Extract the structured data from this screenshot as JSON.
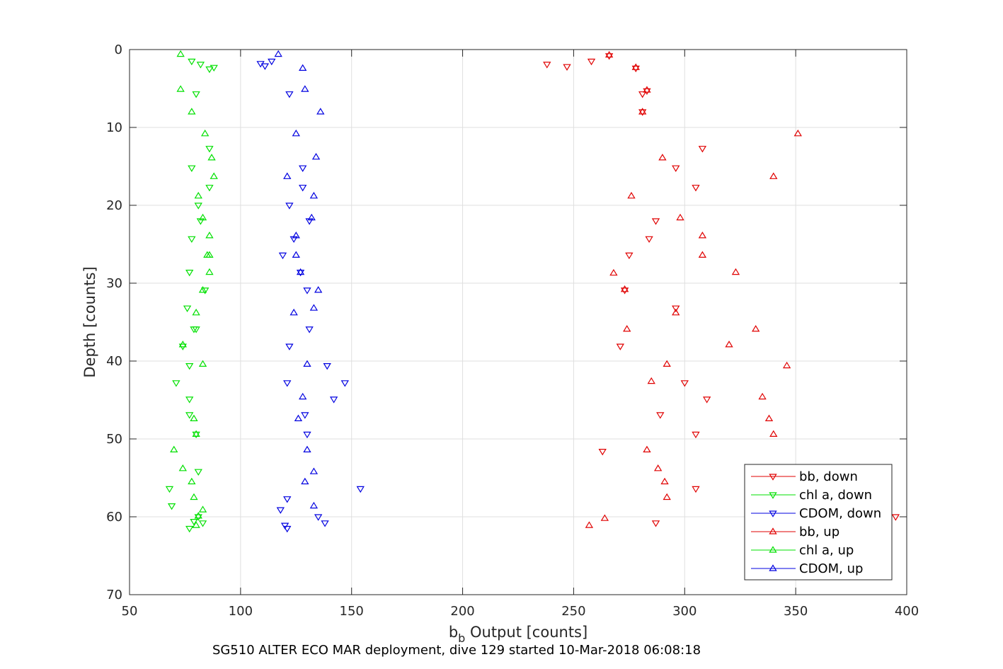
{
  "chart_data": {
    "type": "scatter",
    "xlabel_main": "b",
    "xlabel_sub": "b",
    "xlabel_rest": " Output [counts]",
    "ylabel": "Depth [counts]",
    "caption": "SG510 ALTER ECO MAR deployment, dive 129 started 10-Mar-2018 06:08:18",
    "xlim": [
      50,
      400
    ],
    "ylim": [
      0,
      70
    ],
    "y_reversed": true,
    "grid": true,
    "legend_position": "bottom-right",
    "xticks": [
      50,
      100,
      150,
      200,
      250,
      300,
      350,
      400
    ],
    "yticks": [
      0,
      10,
      20,
      30,
      40,
      50,
      60,
      70
    ],
    "series": [
      {
        "name": "bb, down",
        "color": "#e00000",
        "marker": "triangle-down",
        "x": [
          266,
          258,
          247,
          238,
          278,
          281,
          283,
          281,
          308,
          296,
          305,
          287,
          284,
          275,
          273,
          296,
          271,
          300,
          310,
          289,
          305,
          263,
          305,
          287,
          395
        ],
        "y": [
          0.8,
          1.5,
          2.2,
          1.9,
          2.4,
          5.7,
          5.3,
          8.0,
          12.7,
          15.2,
          17.7,
          22.0,
          24.3,
          26.4,
          30.9,
          33.2,
          38.1,
          42.8,
          44.9,
          46.9,
          49.4,
          51.6,
          56.4,
          60.8,
          60.0
        ]
      },
      {
        "name": "chl a, down",
        "color": "#00e000",
        "marker": "triangle-down",
        "x": [
          78,
          82,
          86,
          88,
          80,
          86,
          78,
          86,
          81,
          82,
          78,
          77,
          84,
          76,
          80,
          79,
          74,
          77,
          71,
          77,
          77,
          80,
          81,
          68,
          69,
          81,
          79,
          83,
          77
        ],
        "y": [
          1.5,
          1.9,
          2.5,
          2.3,
          5.7,
          12.7,
          15.2,
          17.7,
          20.0,
          22.0,
          24.3,
          28.6,
          30.9,
          33.2,
          35.9,
          35.9,
          38.1,
          40.6,
          42.8,
          44.9,
          46.9,
          49.4,
          54.2,
          56.4,
          58.6,
          60.0,
          60.6,
          60.8,
          61.5
        ]
      },
      {
        "name": "CDOM, down",
        "color": "#0000e0",
        "marker": "triangle-down",
        "x": [
          109,
          111,
          114,
          122,
          128,
          128,
          122,
          131,
          124,
          119,
          127,
          130,
          131,
          122,
          139,
          121,
          147,
          142,
          129,
          130,
          154,
          121,
          135,
          118,
          120,
          138,
          121
        ],
        "y": [
          1.8,
          2.1,
          1.5,
          5.7,
          15.2,
          17.7,
          20.0,
          22.0,
          24.3,
          26.4,
          28.6,
          30.9,
          35.9,
          38.1,
          40.6,
          42.8,
          42.8,
          44.9,
          46.9,
          49.4,
          56.4,
          57.7,
          60.0,
          59.1,
          61.1,
          60.8,
          61.5
        ]
      },
      {
        "name": "bb, up",
        "color": "#e00000",
        "marker": "triangle-up",
        "x": [
          266,
          278,
          283,
          281,
          351,
          290,
          340,
          276,
          298,
          308,
          308,
          323,
          268,
          273,
          296,
          274,
          332,
          320,
          292,
          346,
          285,
          335,
          338,
          340,
          283,
          288,
          291,
          292,
          264,
          257
        ],
        "y": [
          0.7,
          2.3,
          5.2,
          8.0,
          10.8,
          13.9,
          16.3,
          18.8,
          21.6,
          23.9,
          26.4,
          28.6,
          28.7,
          30.8,
          33.8,
          35.9,
          35.9,
          37.9,
          40.4,
          40.6,
          42.6,
          44.6,
          47.4,
          49.4,
          51.4,
          53.8,
          55.5,
          57.5,
          60.2,
          61.1
        ]
      },
      {
        "name": "chl a, up",
        "color": "#00e000",
        "marker": "triangle-up",
        "x": [
          73,
          73,
          78,
          84,
          87,
          88,
          81,
          83,
          86,
          85,
          86,
          86,
          83,
          80,
          74,
          83,
          79,
          80,
          70,
          74,
          78,
          79,
          83,
          81,
          80
        ],
        "y": [
          0.6,
          5.1,
          8.0,
          10.8,
          13.9,
          16.3,
          18.8,
          21.6,
          23.9,
          26.4,
          26.4,
          28.6,
          30.9,
          33.8,
          37.9,
          40.4,
          47.4,
          49.4,
          51.4,
          53.8,
          55.5,
          57.5,
          59.1,
          59.9,
          61.1
        ]
      },
      {
        "name": "CDOM, up",
        "color": "#0000e0",
        "marker": "triangle-up",
        "x": [
          117,
          128,
          129,
          136,
          125,
          134,
          121,
          133,
          132,
          125,
          125,
          127,
          135,
          133,
          124,
          130,
          128,
          126,
          130,
          133,
          129,
          133
        ],
        "y": [
          0.6,
          2.4,
          5.1,
          8.0,
          10.8,
          13.8,
          16.3,
          18.8,
          21.6,
          23.9,
          26.4,
          28.6,
          30.9,
          33.2,
          33.8,
          40.4,
          44.6,
          47.4,
          51.4,
          54.2,
          55.5,
          58.6
        ]
      }
    ]
  }
}
